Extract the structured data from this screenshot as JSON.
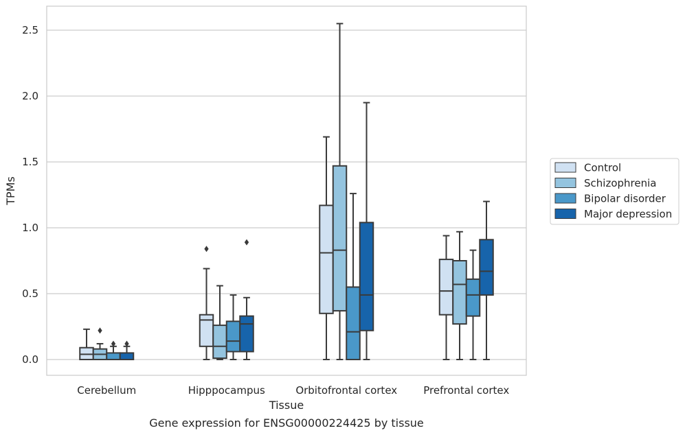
{
  "chart_data": {
    "type": "box",
    "title": "",
    "xlabel": "Tissue",
    "ylabel": "TPMs",
    "caption": "Gene expression for ENSG00000224425 by tissue",
    "ylim": [
      -0.12,
      2.68
    ],
    "yticks": [
      0.0,
      0.5,
      1.0,
      1.5,
      2.0,
      2.5
    ],
    "ytick_labels": [
      "0.0",
      "0.5",
      "1.0",
      "1.5",
      "2.0",
      "2.5"
    ],
    "grid": "horizontal",
    "legend_position": "right",
    "categories": [
      "Cerebellum",
      "Hipppocampus",
      "Orbitofrontal cortex",
      "Prefrontal cortex"
    ],
    "series": [
      {
        "name": "Control",
        "color": "#d0e1f2",
        "boxes": [
          {
            "whisker_low": 0.0,
            "q1": 0.0,
            "median": 0.04,
            "q3": 0.09,
            "whisker_high": 0.23,
            "outliers": []
          },
          {
            "whisker_low": 0.0,
            "q1": 0.1,
            "median": 0.3,
            "q3": 0.34,
            "whisker_high": 0.69,
            "outliers": [
              0.84
            ]
          },
          {
            "whisker_low": 0.0,
            "q1": 0.35,
            "median": 0.81,
            "q3": 1.17,
            "whisker_high": 1.69,
            "outliers": []
          },
          {
            "whisker_low": 0.0,
            "q1": 0.34,
            "median": 0.52,
            "q3": 0.76,
            "whisker_high": 0.94,
            "outliers": []
          }
        ]
      },
      {
        "name": "Schizophrenia",
        "color": "#94c4df",
        "boxes": [
          {
            "whisker_low": 0.0,
            "q1": 0.0,
            "median": 0.04,
            "q3": 0.08,
            "whisker_high": 0.12,
            "outliers": [
              0.22
            ]
          },
          {
            "whisker_low": 0.0,
            "q1": 0.01,
            "median": 0.1,
            "q3": 0.26,
            "whisker_high": 0.56,
            "outliers": []
          },
          {
            "whisker_low": 0.0,
            "q1": 0.37,
            "median": 0.83,
            "q3": 1.47,
            "whisker_high": 2.55,
            "outliers": []
          },
          {
            "whisker_low": 0.0,
            "q1": 0.27,
            "median": 0.57,
            "q3": 0.75,
            "whisker_high": 0.97,
            "outliers": []
          }
        ]
      },
      {
        "name": "Bipolar disorder",
        "color": "#4a98c9",
        "boxes": [
          {
            "whisker_low": 0.0,
            "q1": 0.0,
            "median": 0.0,
            "q3": 0.05,
            "whisker_high": 0.1,
            "outliers": [
              0.12
            ]
          },
          {
            "whisker_low": 0.0,
            "q1": 0.06,
            "median": 0.14,
            "q3": 0.29,
            "whisker_high": 0.49,
            "outliers": []
          },
          {
            "whisker_low": 0.0,
            "q1": 0.0,
            "median": 0.21,
            "q3": 0.55,
            "whisker_high": 1.26,
            "outliers": []
          },
          {
            "whisker_low": 0.0,
            "q1": 0.33,
            "median": 0.49,
            "q3": 0.61,
            "whisker_high": 0.83,
            "outliers": []
          }
        ]
      },
      {
        "name": "Major depression",
        "color": "#1764ab",
        "boxes": [
          {
            "whisker_low": 0.0,
            "q1": 0.0,
            "median": 0.0,
            "q3": 0.05,
            "whisker_high": 0.1,
            "outliers": [
              0.12
            ]
          },
          {
            "whisker_low": 0.0,
            "q1": 0.06,
            "median": 0.27,
            "q3": 0.33,
            "whisker_high": 0.47,
            "outliers": [
              0.89
            ]
          },
          {
            "whisker_low": 0.0,
            "q1": 0.22,
            "median": 0.49,
            "q3": 1.04,
            "whisker_high": 1.95,
            "outliers": []
          },
          {
            "whisker_low": 0.0,
            "q1": 0.49,
            "median": 0.67,
            "q3": 0.91,
            "whisker_high": 1.2,
            "outliers": []
          }
        ]
      }
    ]
  }
}
